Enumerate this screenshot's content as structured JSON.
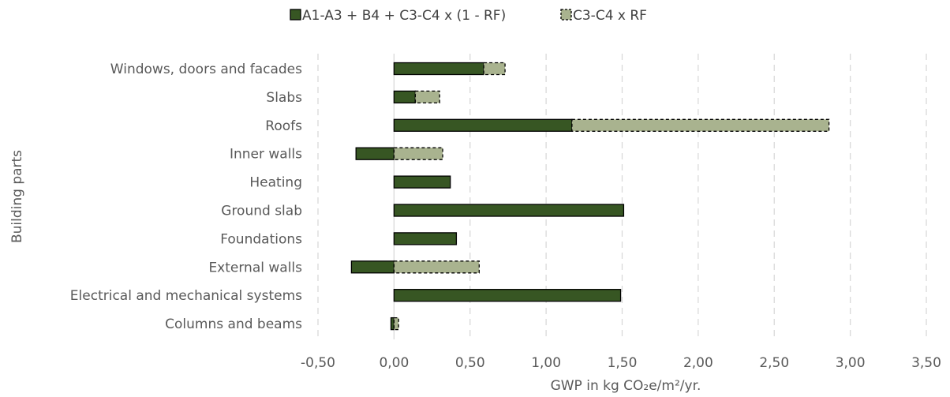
{
  "chart_data": {
    "type": "bar",
    "orientation": "horizontal",
    "stacked": true,
    "categories": [
      "Windows, doors and facades",
      "Slabs",
      "Roofs",
      "Inner walls",
      "Heating",
      "Ground slab",
      "Foundations",
      "External walls",
      "Electrical and mechanical systems",
      "Columns and beams"
    ],
    "series": [
      {
        "name": "A1-A3 + B4 + C3-C4 x (1 - RF)",
        "color": "#375623",
        "border": "solid",
        "values": [
          0.59,
          0.14,
          1.17,
          -0.25,
          0.37,
          1.51,
          0.41,
          -0.28,
          1.49,
          -0.02
        ]
      },
      {
        "name": "C3-C4 x RF",
        "color": "#a9b38f",
        "border": "dashed",
        "values": [
          0.14,
          0.16,
          1.69,
          0.32,
          0,
          0,
          0,
          0.56,
          0,
          0.03
        ]
      }
    ],
    "xlabel": "GWP in kg CO₂e/m²/yr.",
    "ylabel": "Building parts",
    "xlim": [
      -0.5,
      3.5
    ],
    "xticks": [
      -0.5,
      0,
      0.5,
      1,
      1.5,
      2,
      2.5,
      3,
      3.5
    ],
    "xtick_labels": [
      "-0,50",
      "0,00",
      "0,50",
      "1,00",
      "1,50",
      "2,00",
      "2,50",
      "3,00",
      "3,50"
    ],
    "grid": "vertical dashed",
    "legend_position": "top"
  }
}
